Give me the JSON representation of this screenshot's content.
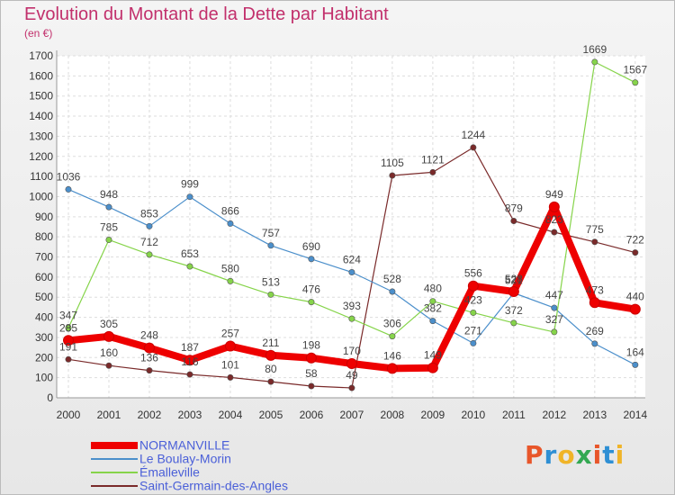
{
  "title": "Evolution du Montant de la Dette par Habitant",
  "unit": "(en €)",
  "logo": "Proxiti",
  "logo_colors": [
    "#e8562a",
    "#2e8fd4",
    "#f0b428",
    "#33a852",
    "#e8562a",
    "#2e8fd4",
    "#f0b428"
  ],
  "chart_data": {
    "type": "line",
    "title": "Evolution du Montant de la Dette par Habitant",
    "ylabel": "(en €)",
    "xlabel": "",
    "x": [
      "2000",
      "2001",
      "2002",
      "2003",
      "2004",
      "2005",
      "2006",
      "2007",
      "2008",
      "2009",
      "2010",
      "2011",
      "2012",
      "2013",
      "2014"
    ],
    "ylim": [
      0,
      1700
    ],
    "yticks": [
      "0",
      "100",
      "200",
      "300",
      "400",
      "500",
      "600",
      "700",
      "800",
      "900",
      "1000",
      "1100",
      "1200",
      "1300",
      "1400",
      "1500",
      "1600",
      "1700"
    ],
    "grid": true,
    "legend_position": "bottom-left",
    "series": [
      {
        "name": "NORMANVILLE",
        "color": "#ee0000",
        "values": [
          285,
          305,
          248,
          187,
          257,
          211,
          198,
          170,
          146,
          149,
          556,
          528,
          949,
          473,
          440
        ],
        "labels": [
          "285",
          "305",
          "248",
          "187",
          "257",
          "211",
          "198",
          "170",
          "146",
          "149",
          "556",
          "528",
          "949",
          "473",
          "440"
        ]
      },
      {
        "name": "Le Boulay-Morin",
        "color": "#4b8fcb",
        "values": [
          1036,
          948,
          853,
          999,
          866,
          757,
          690,
          624,
          528,
          382,
          271,
          521,
          447,
          269,
          164
        ],
        "labels": [
          "1036",
          "948",
          "853",
          "999",
          "866",
          "757",
          "690",
          "624",
          "528",
          "382",
          "271",
          "521",
          "447",
          "269",
          "164"
        ]
      },
      {
        "name": "Émalleville",
        "color": "#86d44a",
        "values": [
          347,
          785,
          712,
          653,
          580,
          513,
          476,
          393,
          306,
          480,
          423,
          372,
          327,
          1669,
          1567
        ],
        "labels": [
          "347",
          "785",
          "712",
          "653",
          "580",
          "513",
          "476",
          "393",
          "306",
          "480",
          "423",
          "372",
          "327",
          "1669",
          "1567"
        ]
      },
      {
        "name": "Saint-Germain-des-Angles",
        "color": "#7a2a2a",
        "values": [
          191,
          160,
          136,
          116,
          101,
          80,
          58,
          49,
          1105,
          1121,
          1244,
          879,
          823,
          775,
          722
        ],
        "labels": [
          "191",
          "160",
          "136",
          "116",
          "101",
          "80",
          "58",
          "49",
          "1105",
          "1121",
          "1244",
          "879",
          "823",
          "775",
          "722"
        ]
      }
    ]
  }
}
